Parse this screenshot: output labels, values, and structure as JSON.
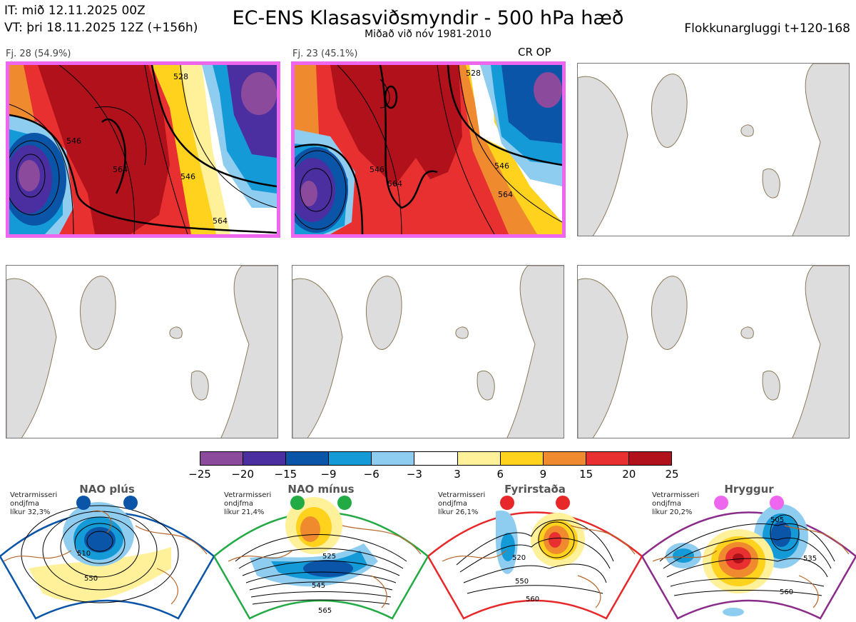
{
  "header": {
    "it_line": "IT: mið 12.11.2025 00Z",
    "vt_line": "VT: þri 18.11.2025 12Z  (+156h)",
    "title": "EC-ENS Klasasviðsmyndir - 500 hPa hæð",
    "subtitle": "Miðað við nóv 1981-2010",
    "window_label": "Flokkunargluggi t+120-168"
  },
  "clusters": [
    {
      "label": "Fj. 28 (54.9%)",
      "tag": ""
    },
    {
      "label": "Fj. 23 (45.1%)",
      "tag": "CR OP"
    }
  ],
  "map_contour_labels": [
    "546",
    "564",
    "528"
  ],
  "colorbar": {
    "ticks": [
      "−25",
      "−20",
      "−15",
      "−9",
      "−6",
      "−3",
      "3",
      "6",
      "9",
      "15",
      "20",
      "25"
    ],
    "colors": [
      "#8b4a9c",
      "#4b2fa0",
      "#0b55a8",
      "#159ad8",
      "#8fcdf0",
      "#ffffff",
      "#fff09a",
      "#ffd21e",
      "#f08a2e",
      "#e83030",
      "#b0111a"
    ]
  },
  "regimes": [
    {
      "name": "NAO plús",
      "climate_text": "Vetrarmisseri",
      "month_text": "ondjfma",
      "prob_text": "líkur 32,3%",
      "color": "#0b55a8",
      "labels": [
        "510",
        "550"
      ]
    },
    {
      "name": "NAO mínus",
      "climate_text": "Vetrarmisseri",
      "month_text": "ondjfma",
      "prob_text": "líkur 21,4%",
      "color": "#22aa44",
      "labels": [
        "525",
        "545",
        "565"
      ]
    },
    {
      "name": "Fyrirstaða",
      "climate_text": "Vetrarmisseri",
      "month_text": "ondjfma",
      "prob_text": "líkur 26,1%",
      "color": "#e82828",
      "labels": [
        "520",
        "550",
        "560"
      ]
    },
    {
      "name": "Hryggur",
      "climate_text": "Vetrarmisseri",
      "month_text": "ondjfma",
      "prob_text": "líkur 20,2%",
      "color": "#ee66ee",
      "labels": [
        "505",
        "535",
        "560"
      ]
    }
  ]
}
